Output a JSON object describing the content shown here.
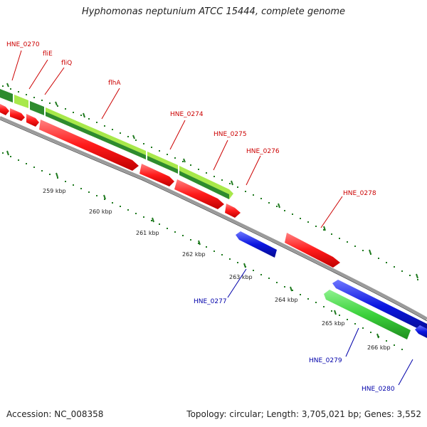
{
  "title": "Hyphomonas neptunium ATCC 15444, complete genome",
  "footer": {
    "accession_label": "Accession:",
    "accession": "NC_008358",
    "topology_label": "Topology:",
    "topology": "circular",
    "length_label": "Length:",
    "length": "3,705,021 bp",
    "genes_label": "Genes:",
    "genes": "3,552"
  },
  "colors": {
    "forward_cds": "#ff1a1a",
    "reverse_cds": "#0b16e0",
    "rna_dark": "#2e8b2e",
    "rna_light": "#a8e84a",
    "rna_green": "#3cd23c",
    "backbone": "#808080",
    "tick": "#1f7a1f",
    "label_forward": "#cc0000",
    "label_reverse": "#0000aa"
  },
  "ticks": [
    {
      "label": "259 kbp"
    },
    {
      "label": "260 kbp"
    },
    {
      "label": "261 kbp"
    },
    {
      "label": "262 kbp"
    },
    {
      "label": "263 kbp"
    },
    {
      "label": "264 kbp"
    },
    {
      "label": "265 kbp"
    },
    {
      "label": "266 kbp"
    }
  ],
  "gene_labels": [
    {
      "text": "HNE_0270",
      "strand": "forward"
    },
    {
      "text": "fliE",
      "strand": "forward"
    },
    {
      "text": "fliQ",
      "strand": "forward"
    },
    {
      "text": "flhA",
      "strand": "forward"
    },
    {
      "text": "HNE_0274",
      "strand": "forward"
    },
    {
      "text": "HNE_0275",
      "strand": "forward"
    },
    {
      "text": "HNE_0276",
      "strand": "forward"
    },
    {
      "text": "HNE_0278",
      "strand": "forward"
    },
    {
      "text": "HNE_0277",
      "strand": "reverse"
    },
    {
      "text": "HNE_0279",
      "strand": "reverse"
    },
    {
      "text": "HNE_0280",
      "strand": "reverse"
    }
  ]
}
